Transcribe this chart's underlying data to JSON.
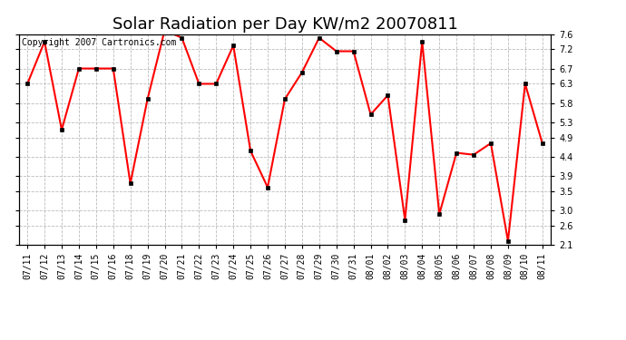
{
  "title": "Solar Radiation per Day KW/m2 20070811",
  "copyright_text": "Copyright 2007 Cartronics.com",
  "dates": [
    "07/11",
    "07/12",
    "07/13",
    "07/14",
    "07/15",
    "07/16",
    "07/18",
    "07/19",
    "07/20",
    "07/21",
    "07/22",
    "07/23",
    "07/24",
    "07/25",
    "07/26",
    "07/27",
    "07/28",
    "07/29",
    "07/30",
    "07/31",
    "08/01",
    "08/02",
    "08/03",
    "08/04",
    "08/05",
    "08/06",
    "08/07",
    "08/08",
    "08/09",
    "08/10",
    "08/11"
  ],
  "values": [
    6.3,
    7.4,
    5.1,
    6.7,
    6.7,
    6.7,
    3.7,
    5.9,
    7.7,
    7.5,
    6.3,
    6.3,
    7.3,
    4.55,
    3.6,
    5.9,
    6.6,
    7.5,
    7.15,
    7.15,
    5.5,
    6.0,
    2.75,
    7.4,
    2.9,
    4.5,
    4.45,
    4.75,
    2.2,
    6.3,
    4.75
  ],
  "line_color": "#ff0000",
  "marker": "s",
  "marker_size": 3,
  "marker_color": "#000000",
  "bg_color": "#ffffff",
  "grid_color": "#bbbbbb",
  "ylim": [
    2.1,
    7.6
  ],
  "yticks": [
    2.1,
    2.6,
    3.0,
    3.5,
    3.9,
    4.4,
    4.9,
    5.3,
    5.8,
    6.3,
    6.7,
    7.2,
    7.6
  ],
  "title_fontsize": 13,
  "copyright_fontsize": 7,
  "tick_fontsize": 7,
  "linewidth": 1.5
}
